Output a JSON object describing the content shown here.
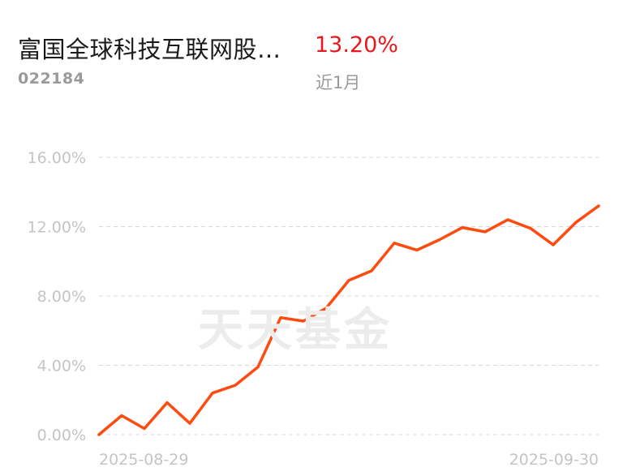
{
  "header": {
    "fund_name": "富国全球科技互联网股…",
    "fund_code": "022184",
    "return_value": "13.20%",
    "period": "近1月"
  },
  "watermark": "天天基金",
  "colors": {
    "line": "#ff4b0f",
    "positive": "#e8191d",
    "grid": "#d8d8d8",
    "tick_label": "#c4c4c4"
  },
  "chart_data": {
    "type": "line",
    "title": "",
    "xlabel": "",
    "ylabel": "",
    "ylim": [
      0,
      16
    ],
    "y_ticks": [
      0,
      4,
      8,
      12,
      16
    ],
    "y_tick_labels": [
      "0.00%",
      "4.00%",
      "8.00%",
      "12.00%",
      "16.00%"
    ],
    "x_tick_labels": [
      "2025-08-29",
      "2025-09-30"
    ],
    "grid": true,
    "legend": "none",
    "series": [
      {
        "values": [
          0.0,
          1.1,
          0.35,
          1.85,
          0.65,
          2.4,
          2.85,
          3.9,
          6.75,
          6.55,
          7.3,
          8.9,
          9.45,
          11.05,
          10.65,
          11.25,
          11.95,
          11.7,
          12.4,
          11.9,
          10.95,
          12.25,
          13.2
        ]
      }
    ]
  }
}
